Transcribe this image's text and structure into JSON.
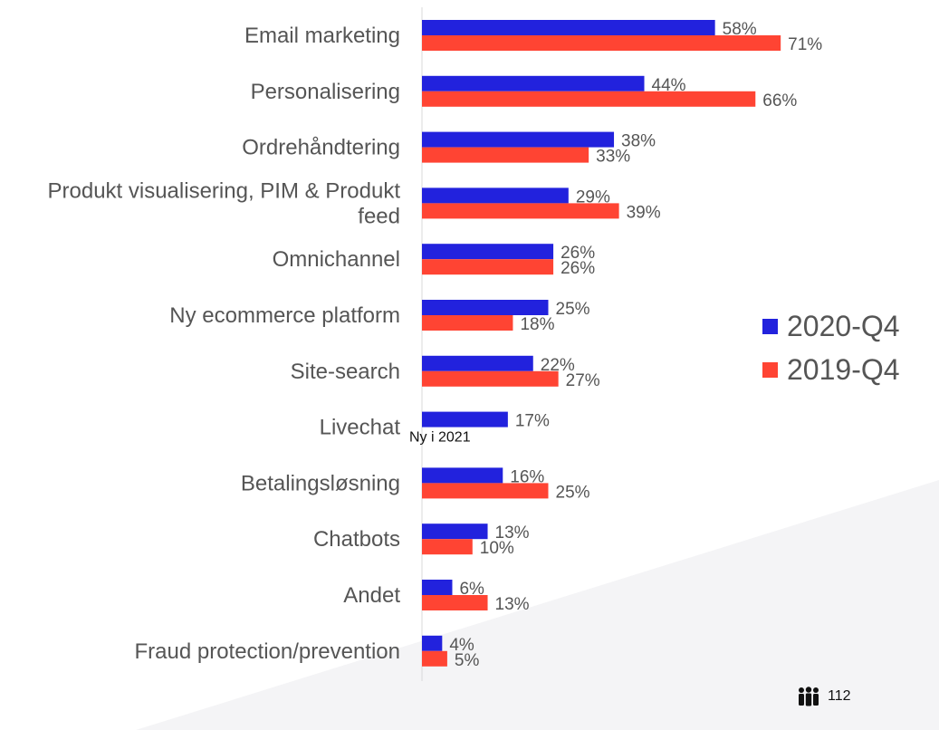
{
  "chart_data": {
    "type": "bar",
    "orientation": "horizontal",
    "categories": [
      [
        "Email marketing"
      ],
      [
        "Personalisering"
      ],
      [
        "Ordrehåndtering"
      ],
      [
        "Produkt visualisering, PIM & Produkt",
        "feed"
      ],
      [
        "Omnichannel"
      ],
      [
        "Ny ecommerce platform"
      ],
      [
        "Site-search"
      ],
      [
        "Livechat"
      ],
      [
        "Betalingsløsning"
      ],
      [
        "Chatbots"
      ],
      [
        "Andet"
      ],
      [
        "Fraud protection/prevention"
      ]
    ],
    "series": [
      {
        "name": "2020-Q4",
        "color": "#2222dd",
        "values": [
          58,
          44,
          38,
          29,
          26,
          25,
          22,
          17,
          16,
          13,
          6,
          4
        ],
        "labels": [
          "58%",
          "44%",
          "38%",
          "29%",
          "26%",
          "25%",
          "22%",
          "17%",
          "16%",
          "13%",
          "6%",
          "4%"
        ]
      },
      {
        "name": "2019-Q4",
        "color": "#ff4433",
        "values": [
          71,
          66,
          33,
          39,
          26,
          18,
          27,
          null,
          25,
          10,
          13,
          5
        ],
        "labels": [
          "71%",
          "66%",
          "33%",
          "39%",
          "26%",
          "18%",
          "27%",
          null,
          "25%",
          "10%",
          "13%",
          "5%"
        ]
      }
    ],
    "annotations": [
      {
        "category_index": 7,
        "text": "Ny i 2021"
      }
    ],
    "unit": "%",
    "xlim": [
      0,
      100
    ],
    "legend_position": "right"
  },
  "legend": {
    "items": [
      {
        "label": "2020-Q4",
        "color": "#2222dd"
      },
      {
        "label": "2019-Q4",
        "color": "#ff4433"
      }
    ]
  },
  "footer": {
    "icon": "people-icon",
    "count": "112"
  }
}
